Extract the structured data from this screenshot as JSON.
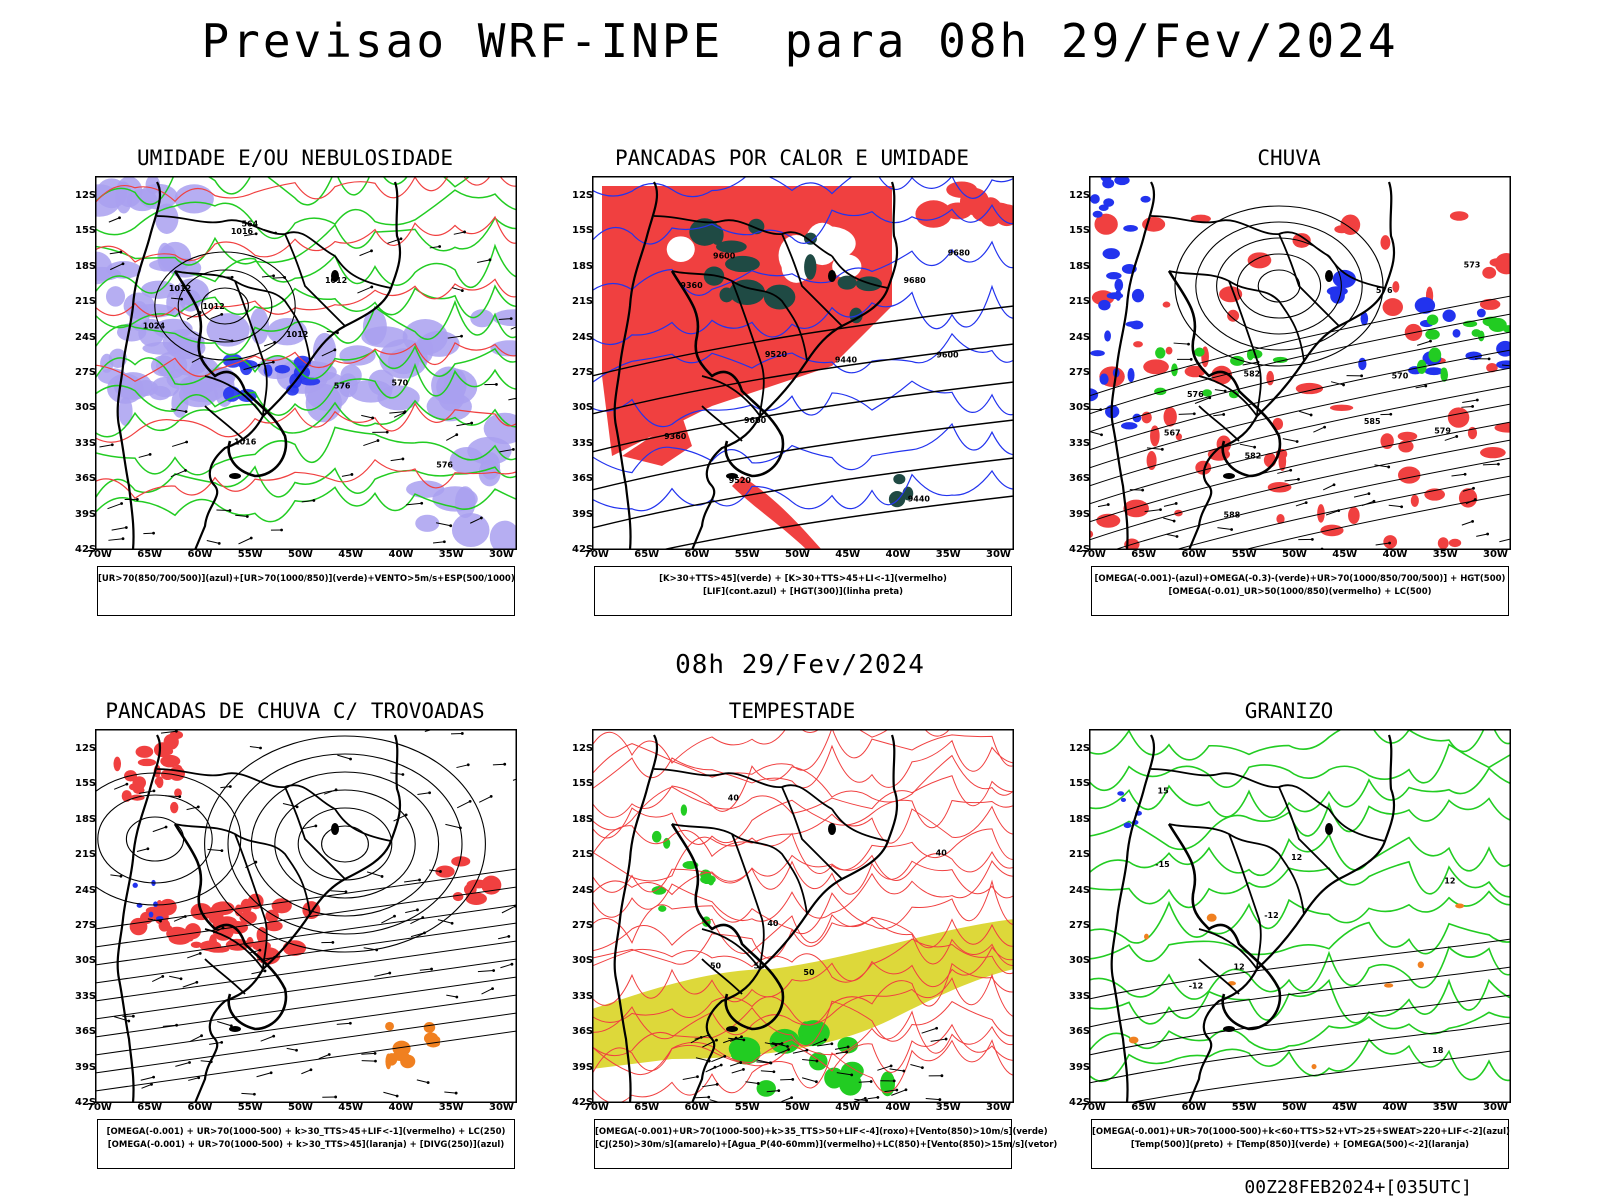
{
  "header": {
    "title": "Previsao WRF-INPE  para 08h 29/Fev/2024",
    "mid_title": "08h 29/Fev/2024",
    "run_stamp": "00Z28FEB2024+[035UTC]"
  },
  "axes": {
    "lat_labels": [
      "12S",
      "15S",
      "18S",
      "21S",
      "24S",
      "27S",
      "30S",
      "33S",
      "36S",
      "39S",
      "42S"
    ],
    "lon_labels": [
      "70W",
      "65W",
      "60W",
      "55W",
      "50W",
      "45W",
      "40W",
      "35W",
      "30W"
    ]
  },
  "panels": [
    {
      "title": "UMIDADE E/OU NEBULOSIDADE",
      "legend": [
        "[UR>70(850/700/500)](azul)+[UR>70(1000/850)](verde)+VENTO>5m/s+ESP(500/1000)"
      ],
      "labels": [
        "1012",
        "1012",
        "1012",
        "1016",
        "1016",
        "1012",
        "1024",
        "576",
        "576",
        "570",
        "564"
      ]
    },
    {
      "title": "PANCADAS POR CALOR E UMIDADE",
      "legend": [
        "[K>30+TTS>45](verde) + [K>30+TTS>45+LI<-1](vermelho)",
        "[LIF](cont.azul) + [HGT(300)](linha preta)"
      ],
      "labels": [
        "9600",
        "9600",
        "9520",
        "9440",
        "9360",
        "9360",
        "9440",
        "9520",
        "9600",
        "9680",
        "9680"
      ]
    },
    {
      "title": "CHUVA",
      "legend": [
        "[OMEGA(-0.001)-(azul)+OMEGA(-0.3)-(verde)+UR>70(1000/850/700/500)] + HGT(500)",
        "[OMEGA(-0.01)_UR>50(1000/850)(vermelho) + LC(500)"
      ],
      "labels": [
        "588",
        "585",
        "582",
        "582",
        "579",
        "576",
        "576",
        "573",
        "570",
        "567"
      ]
    },
    {
      "title": "PANCADAS DE CHUVA C/ TROVOADAS",
      "legend": [
        "[OMEGA(-0.001) + UR>70(1000-500) + k>30_TTS>45+LIF<-1](vermelho) + LC(250)",
        "[OMEGA(-0.001) + UR>70(1000-500) + k>30_TTS>45](laranja) + [DIVG(250)](azul)"
      ],
      "labels": []
    },
    {
      "title": "TEMPESTADE",
      "legend": [
        "[OMEGA(-0.001)+UR>70(1000-500)+k>35_TTS>50+LIF<-4](roxo)+[Vento(850)>10m/s](verde)",
        "[CJ(250)>30m/s](amarelo)+[Agua_P(40-60mm)](vermelho)+LC(850)+[Vento(850)>15m/s](vetor)"
      ],
      "labels": [
        "50",
        "40",
        "50",
        "40",
        "50",
        "40"
      ]
    },
    {
      "title": "GRANIZO",
      "legend": [
        "[OMEGA(-0.001)+UR>70(1000-500)+k<60+TTS>52+VT>25+SWEAT>220+LIF<-2](azul)",
        "[Temp(500)](preto) + [Temp(850)](verde) + [OMEGA(500)<-2](laranja)"
      ],
      "labels": [
        "-12",
        "-15",
        "-12",
        "12",
        "12",
        "12",
        "18",
        "15"
      ]
    }
  ],
  "colors": {
    "red": "#f04040",
    "green": "#22cc22",
    "blue": "#2233ee",
    "lavender": "#a9a0f0",
    "darkteal": "#1f4a44",
    "yellow": "#ddd83a",
    "orange": "#f08020"
  }
}
